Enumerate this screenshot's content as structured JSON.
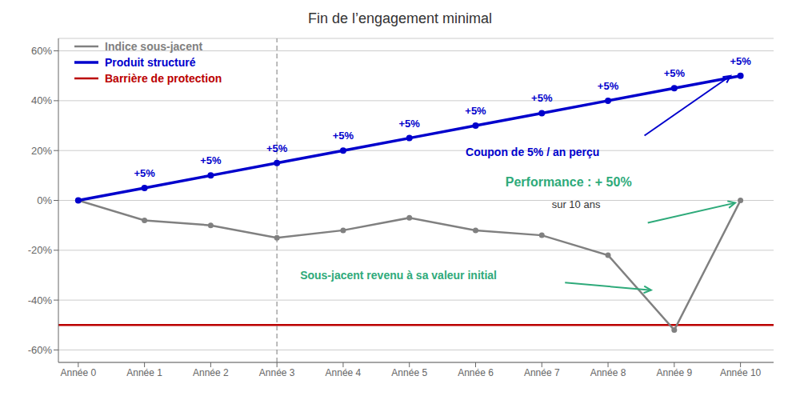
{
  "chart_data": {
    "type": "line",
    "title": "Fin de l’engagement minimal",
    "x": [
      0,
      1,
      2,
      3,
      4,
      5,
      6,
      7,
      8,
      9,
      10
    ],
    "xlim": [
      -0.3,
      10.5
    ],
    "xticks": [
      {
        "value": 0,
        "label": "Année 0"
      },
      {
        "value": 1,
        "label": "Année 1"
      },
      {
        "value": 2,
        "label": "Année 2"
      },
      {
        "value": 3,
        "label": "Année 3"
      },
      {
        "value": 4,
        "label": "Année 4"
      },
      {
        "value": 5,
        "label": "Année 5"
      },
      {
        "value": 6,
        "label": "Année 6"
      },
      {
        "value": 7,
        "label": "Année 7"
      },
      {
        "value": 8,
        "label": "Année 8"
      },
      {
        "value": 9,
        "label": "Année 9"
      },
      {
        "value": 10,
        "label": "Année 10"
      }
    ],
    "ylim": [
      -0.65,
      0.65
    ],
    "yticks": [
      {
        "value": -0.6,
        "label": "-60%"
      },
      {
        "value": -0.4,
        "label": "-40%"
      },
      {
        "value": -0.2,
        "label": "-20%"
      },
      {
        "value": 0,
        "label": "0%"
      },
      {
        "value": 0.2,
        "label": "20%"
      },
      {
        "value": 0.4,
        "label": "40%"
      },
      {
        "value": 0.6,
        "label": "60%"
      }
    ],
    "grid": "y",
    "legend": "upper left",
    "series": [
      {
        "name": "Indice sous-jacent",
        "color": "#808080",
        "marker": "circle",
        "values": [
          0.0,
          -0.08,
          -0.1,
          -0.15,
          -0.12,
          -0.07,
          -0.12,
          -0.14,
          -0.22,
          -0.52,
          0.0
        ]
      },
      {
        "name": "Produit structuré",
        "color": "#0000CC",
        "marker": "circle",
        "values": [
          0.0,
          0.05,
          0.1,
          0.15,
          0.2,
          0.25,
          0.3,
          0.35,
          0.4,
          0.45,
          0.5
        ]
      }
    ],
    "reference_lines": [
      {
        "axis": "y",
        "value": -0.5,
        "name": "Barrière de protection",
        "color": "#BB0000",
        "line_style": "solid"
      },
      {
        "axis": "x",
        "value": 3,
        "color": "#808080",
        "line_style": "dashed"
      }
    ],
    "point_annotations": [
      {
        "text": "+5%",
        "x": 1,
        "y": 0.05,
        "color": "#0000CC"
      },
      {
        "text": "+5%",
        "x": 2,
        "y": 0.1,
        "color": "#0000CC"
      },
      {
        "text": "+5%",
        "x": 3,
        "y": 0.15,
        "color": "#0000CC"
      },
      {
        "text": "+5%",
        "x": 4,
        "y": 0.2,
        "color": "#0000CC"
      },
      {
        "text": "+5%",
        "x": 5,
        "y": 0.25,
        "color": "#0000CC"
      },
      {
        "text": "+5%",
        "x": 6,
        "y": 0.3,
        "color": "#0000CC"
      },
      {
        "text": "+5%",
        "x": 7,
        "y": 0.35,
        "color": "#0000CC"
      },
      {
        "text": "+5%",
        "x": 8,
        "y": 0.4,
        "color": "#0000CC"
      },
      {
        "text": "+5%",
        "x": 9,
        "y": 0.45,
        "color": "#0000CC"
      },
      {
        "text": "+5%",
        "x": 10,
        "y": 0.5,
        "color": "#0000CC"
      }
    ],
    "annotations": [
      {
        "text": "Coupon de 5% / an perçu",
        "x": 5.85,
        "y": 0.195,
        "color": "#0000CC"
      },
      {
        "text": "Performance : + 50%",
        "x": 6.45,
        "y": 0.075,
        "color": "#2EAA7A"
      },
      {
        "text": "sur 10 ans",
        "x": 7.15,
        "y": -0.015,
        "color": "#333333"
      },
      {
        "text": "Sous-jacent revenu à sa valeur initial",
        "x": 3.35,
        "y": -0.3,
        "color": "#2EAA7A"
      }
    ]
  }
}
